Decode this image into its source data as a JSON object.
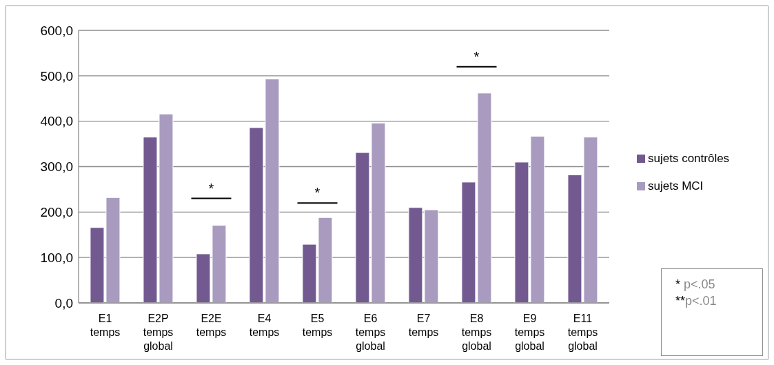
{
  "chart_data": {
    "type": "bar",
    "categories": [
      "E1\ntemps",
      "E2P\ntemps\nglobal",
      "E2E\ntemps",
      "E4\ntemps",
      "E5\ntemps",
      "E6\ntemps\nglobal",
      "E7\ntemps",
      "E8\ntemps\nglobal",
      "E9\ntemps\nglobal",
      "E11\ntemps\nglobal"
    ],
    "series": [
      {
        "name": "sujets contrôles",
        "color": "#725a91",
        "values": [
          166,
          365,
          108,
          386,
          129,
          331,
          210,
          266,
          310,
          282
        ]
      },
      {
        "name": "sujets MCI",
        "color": "#a99bbf",
        "values": [
          232,
          416,
          171,
          493,
          188,
          396,
          205,
          462,
          367,
          365
        ]
      }
    ],
    "ylim": [
      0,
      600
    ],
    "yticks": [
      {
        "value": 0,
        "label": "0,0"
      },
      {
        "value": 100,
        "label": "100,0"
      },
      {
        "value": 200,
        "label": "200,0"
      },
      {
        "value": 300,
        "label": "300,0"
      },
      {
        "value": 400,
        "label": "400,0"
      },
      {
        "value": 500,
        "label": "500,0"
      },
      {
        "value": 600,
        "label": "600,0"
      }
    ],
    "grid": "y",
    "legend": "right",
    "annotations": [
      "*",
      "*",
      "*",
      "* p<.05",
      "**p<.01"
    ]
  }
}
